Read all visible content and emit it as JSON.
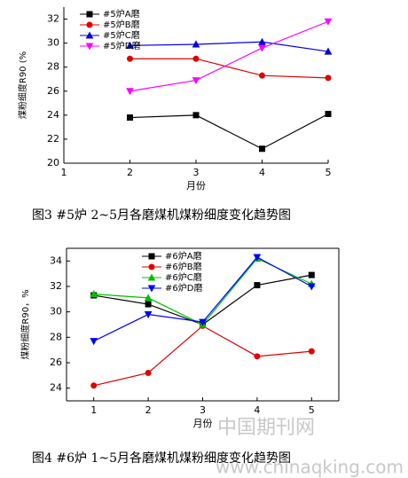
{
  "chart_data": [
    {
      "type": "line",
      "caption": "图3  #5炉 2~5月各磨煤机煤粉细度变化趋势图",
      "xlabel": "月份",
      "ylabel": "煤粉细度R90 (%",
      "x": [
        2,
        3,
        4,
        5
      ],
      "xlim": [
        1,
        5
      ],
      "xticks": [
        1,
        2,
        3,
        4,
        5
      ],
      "ylim": [
        20,
        33
      ],
      "yticks": [
        20,
        22,
        24,
        26,
        28,
        30,
        32
      ],
      "box": false,
      "series": [
        {
          "name": "#5炉A磨",
          "color": "#000000",
          "marker": "square",
          "values": [
            23.8,
            24.0,
            21.2,
            24.1
          ]
        },
        {
          "name": "#5炉B磨",
          "color": "#e00000",
          "marker": "circle",
          "values": [
            28.7,
            28.7,
            27.3,
            27.1
          ]
        },
        {
          "name": "#5炉C磨",
          "color": "#0000e0",
          "marker": "triangle-up",
          "values": [
            29.8,
            29.9,
            30.1,
            29.3
          ]
        },
        {
          "name": "#5炉D磨",
          "color": "#ff00ff",
          "marker": "triangle-down",
          "values": [
            26.0,
            26.9,
            29.6,
            31.8
          ]
        }
      ]
    },
    {
      "type": "line",
      "caption": "图4  #6炉 1~5月各磨煤机煤粉细度变化趋势图",
      "xlabel": "月份",
      "ylabel": "煤粉细度R90，%",
      "x": [
        1,
        2,
        3,
        4,
        5
      ],
      "xlim": [
        0.5,
        5.5
      ],
      "xticks": [
        1,
        2,
        3,
        4,
        5
      ],
      "ylim": [
        23,
        35
      ],
      "yticks": [
        24,
        26,
        28,
        30,
        32,
        34
      ],
      "box": true,
      "series": [
        {
          "name": "#6炉A磨",
          "color": "#000000",
          "marker": "square",
          "values": [
            31.3,
            30.6,
            29.0,
            32.1,
            32.9
          ]
        },
        {
          "name": "#6炉B磨",
          "color": "#e00000",
          "marker": "circle",
          "values": [
            24.2,
            25.2,
            28.9,
            26.5,
            26.9
          ]
        },
        {
          "name": "#6炉C磨",
          "color": "#00c000",
          "marker": "triangle-up",
          "values": [
            31.4,
            31.1,
            29.0,
            34.2,
            32.2
          ]
        },
        {
          "name": "#6炉D磨",
          "color": "#0000ff",
          "marker": "triangle-down",
          "values": [
            27.7,
            29.8,
            29.2,
            34.3,
            32.0
          ]
        }
      ]
    }
  ],
  "watermark": {
    "name": "中国期刊网",
    "url": "www.chinaqking.com"
  }
}
